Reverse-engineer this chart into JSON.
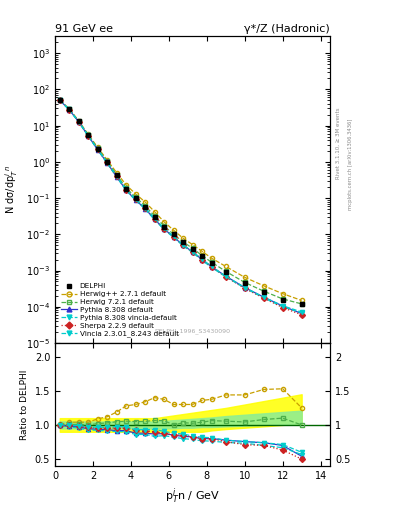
{
  "title_left": "91 GeV ee",
  "title_right": "γ*/Z (Hadronic)",
  "xlabel": "p$_T^i$n / GeV",
  "ylabel_main": "N dσ/dp$_T^i$$^n$",
  "ylabel_ratio": "Ratio to DELPHI",
  "watermark": "DELPHI_1996_S3430090",
  "rivet_label": "Rivet 3.1.10, ≥ 3M events",
  "mcplots_label": "mcplots.cern.ch [arXiv:1306.3436]",
  "xdata": [
    0.25,
    0.75,
    1.25,
    1.75,
    2.25,
    2.75,
    3.25,
    3.75,
    4.25,
    4.75,
    5.25,
    5.75,
    6.25,
    6.75,
    7.25,
    7.75,
    8.25,
    9.0,
    10.0,
    11.0,
    12.0,
    13.0
  ],
  "delphi_y": [
    50.0,
    28.0,
    13.0,
    5.5,
    2.3,
    1.0,
    0.42,
    0.18,
    0.1,
    0.058,
    0.03,
    0.016,
    0.01,
    0.006,
    0.004,
    0.0025,
    0.0016,
    0.0009,
    0.00045,
    0.00025,
    0.00015,
    0.00012
  ],
  "delphi_yerr": [
    2.0,
    1.0,
    0.5,
    0.2,
    0.1,
    0.04,
    0.018,
    0.008,
    0.004,
    0.003,
    0.0015,
    0.0008,
    0.0005,
    0.0003,
    0.0002,
    0.00012,
    8e-05,
    5e-05,
    2.5e-05,
    1.5e-05,
    1e-05,
    1e-05
  ],
  "herwig271_y": [
    50.5,
    29.0,
    13.5,
    5.7,
    2.5,
    1.12,
    0.5,
    0.23,
    0.13,
    0.078,
    0.042,
    0.022,
    0.013,
    0.0078,
    0.0052,
    0.0034,
    0.0022,
    0.0013,
    0.00065,
    0.00038,
    0.00023,
    0.00015
  ],
  "herwig721_y": [
    50.2,
    28.2,
    13.1,
    5.5,
    2.35,
    1.03,
    0.44,
    0.19,
    0.105,
    0.061,
    0.032,
    0.017,
    0.01,
    0.0062,
    0.0041,
    0.0026,
    0.0017,
    0.00095,
    0.00047,
    0.00027,
    0.000165,
    0.00012
  ],
  "pythia_y": [
    49.8,
    27.5,
    12.6,
    5.2,
    2.15,
    0.93,
    0.385,
    0.165,
    0.088,
    0.051,
    0.026,
    0.014,
    0.0085,
    0.005,
    0.0033,
    0.002,
    0.00128,
    0.0007,
    0.00034,
    0.000185,
    0.000105,
    6.5e-05
  ],
  "pythia_vincia_y": [
    49.5,
    27.3,
    12.4,
    5.1,
    2.12,
    0.91,
    0.38,
    0.162,
    0.086,
    0.05,
    0.025,
    0.0135,
    0.0082,
    0.0048,
    0.00315,
    0.00192,
    0.00122,
    0.00067,
    0.00033,
    0.000175,
    0.0001,
    6.8e-05
  ],
  "sherpa_y": [
    49.9,
    27.8,
    12.8,
    5.3,
    2.2,
    0.96,
    0.4,
    0.172,
    0.092,
    0.053,
    0.027,
    0.014,
    0.0086,
    0.0051,
    0.0033,
    0.002,
    0.00128,
    0.00068,
    0.00032,
    0.000175,
    9.5e-05,
    6e-05
  ],
  "vincia_y": [
    50.1,
    27.9,
    12.9,
    5.35,
    2.22,
    0.97,
    0.41,
    0.175,
    0.093,
    0.054,
    0.028,
    0.0145,
    0.0088,
    0.0052,
    0.00335,
    0.00205,
    0.0013,
    0.0007,
    0.00034,
    0.000185,
    0.000107,
    7.2e-05
  ],
  "herwig271_ratio": [
    1.01,
    1.04,
    1.04,
    1.04,
    1.09,
    1.12,
    1.19,
    1.28,
    1.3,
    1.34,
    1.4,
    1.375,
    1.3,
    1.3,
    1.3,
    1.36,
    1.375,
    1.44,
    1.44,
    1.52,
    1.53,
    1.25
  ],
  "herwig721_ratio": [
    1.004,
    1.007,
    1.008,
    1.0,
    1.02,
    1.03,
    1.048,
    1.056,
    1.05,
    1.052,
    1.067,
    1.063,
    1.0,
    1.033,
    1.025,
    1.04,
    1.063,
    1.056,
    1.044,
    1.08,
    1.1,
    1.0
  ],
  "pythia_ratio": [
    0.996,
    0.982,
    0.969,
    0.945,
    0.935,
    0.93,
    0.917,
    0.917,
    0.88,
    0.879,
    0.867,
    0.875,
    0.85,
    0.833,
    0.825,
    0.8,
    0.8,
    0.778,
    0.756,
    0.74,
    0.7,
    0.542
  ],
  "pythia_vincia_ratio": [
    0.99,
    0.975,
    0.954,
    0.927,
    0.922,
    0.91,
    0.905,
    0.9,
    0.86,
    0.862,
    0.833,
    0.844,
    0.82,
    0.8,
    0.788,
    0.768,
    0.763,
    0.744,
    0.733,
    0.7,
    0.667,
    0.567
  ],
  "sherpa_ratio": [
    0.998,
    0.993,
    0.985,
    0.964,
    0.957,
    0.96,
    0.952,
    0.956,
    0.92,
    0.914,
    0.9,
    0.875,
    0.86,
    0.85,
    0.825,
    0.8,
    0.8,
    0.756,
    0.711,
    0.7,
    0.633,
    0.5
  ],
  "vincia_ratio": [
    1.002,
    0.996,
    0.992,
    0.973,
    0.965,
    0.97,
    0.976,
    0.972,
    0.93,
    0.931,
    0.933,
    0.906,
    0.88,
    0.867,
    0.838,
    0.82,
    0.813,
    0.778,
    0.756,
    0.74,
    0.713,
    0.6
  ],
  "herwig271_color": "#c8a000",
  "herwig721_color": "#4daf4a",
  "pythia_color": "#3333cc",
  "pythia_vincia_color": "#00cccc",
  "sherpa_color": "#cc2222",
  "vincia_color": "#00cccc",
  "band_yellow_low": [
    0.9,
    0.9,
    0.9,
    0.9,
    0.9,
    0.9,
    0.9,
    0.9,
    0.9,
    0.9,
    0.9,
    0.9,
    0.9,
    0.9,
    0.9,
    0.9,
    0.92,
    0.94,
    0.96,
    0.98,
    1.0,
    1.02
  ],
  "band_yellow_high": [
    1.1,
    1.1,
    1.1,
    1.1,
    1.1,
    1.1,
    1.1,
    1.1,
    1.1,
    1.1,
    1.1,
    1.12,
    1.14,
    1.16,
    1.18,
    1.2,
    1.22,
    1.25,
    1.3,
    1.35,
    1.4,
    1.45
  ],
  "band_green_low": [
    0.95,
    0.95,
    0.95,
    0.95,
    0.95,
    0.95,
    0.95,
    0.95,
    0.95,
    0.95,
    0.95,
    0.95,
    0.95,
    0.96,
    0.96,
    0.97,
    0.97,
    0.98,
    0.99,
    1.0,
    1.01,
    1.02
  ],
  "band_green_high": [
    1.05,
    1.05,
    1.05,
    1.05,
    1.05,
    1.05,
    1.05,
    1.05,
    1.05,
    1.05,
    1.05,
    1.06,
    1.07,
    1.08,
    1.09,
    1.1,
    1.11,
    1.13,
    1.15,
    1.17,
    1.19,
    1.21
  ],
  "ylim_main": [
    1e-05,
    3000.0
  ],
  "ylim_ratio": [
    0.4,
    2.2
  ],
  "xlim": [
    0,
    14.5
  ],
  "bg_color": "#ffffff"
}
